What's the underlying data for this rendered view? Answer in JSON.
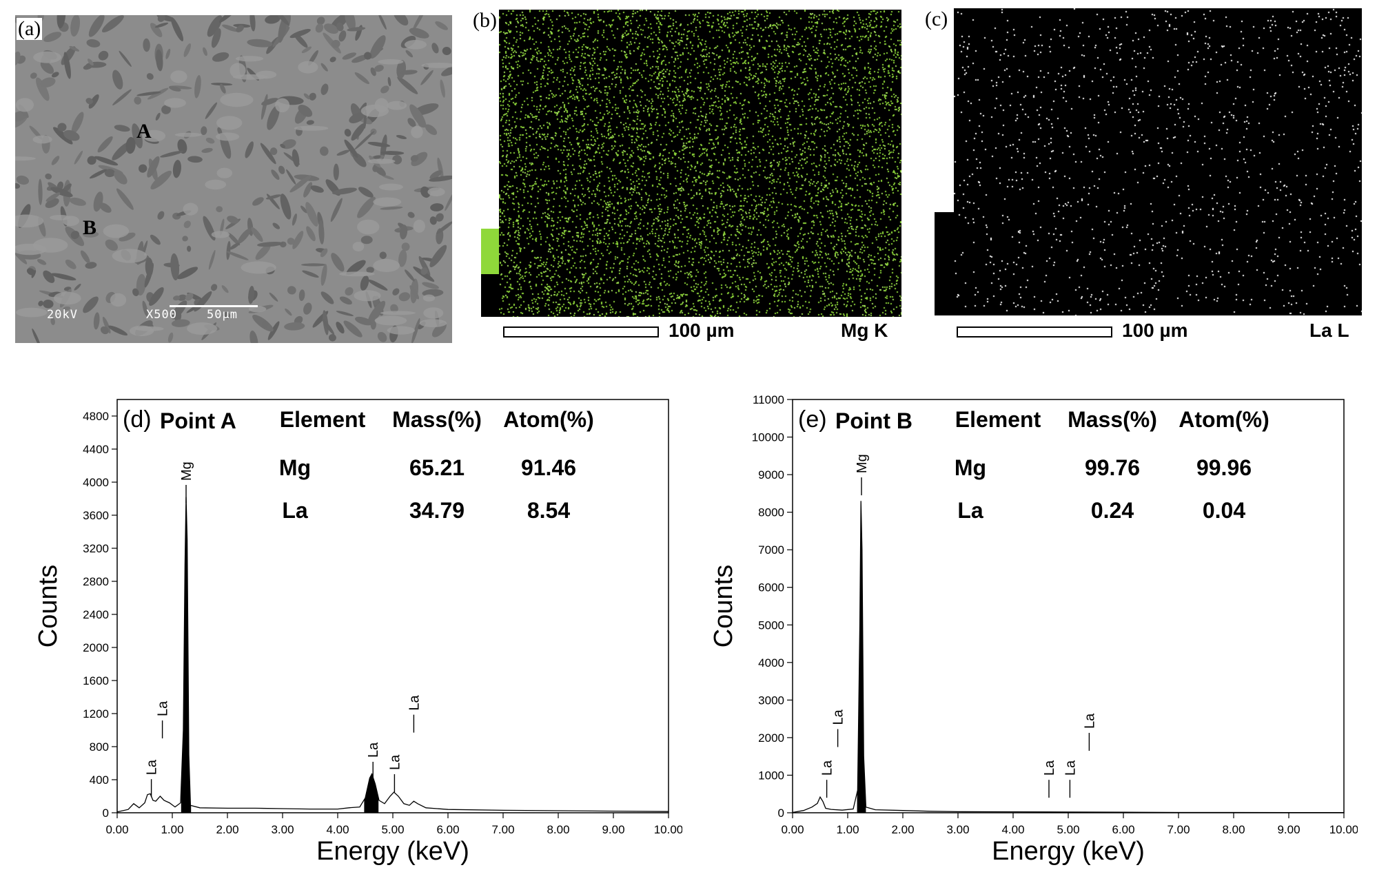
{
  "panels": {
    "a": {
      "label": "(a)",
      "point_a": "A",
      "point_b": "B",
      "voltage": "20kV",
      "magnification": "X500",
      "scale": "50µm"
    },
    "b": {
      "label": "(b)",
      "scale": "100 µm",
      "element": "Mg K",
      "map_color": "#8fd83a"
    },
    "c": {
      "label": "(c)",
      "scale": "100 µm",
      "element": "La L",
      "map_color": "#ffffff"
    },
    "d": {
      "label": "(d)",
      "point": "Point A",
      "table_headers": [
        "Element",
        "Mass(%)",
        "Atom(%)"
      ],
      "table_rows": [
        [
          "Mg",
          "65.21",
          "91.46"
        ],
        [
          "La",
          "34.79",
          "8.54"
        ]
      ]
    },
    "e": {
      "label": "(e)",
      "point": "Point B",
      "table_headers": [
        "Element",
        "Mass(%)",
        "Atom(%)"
      ],
      "table_rows": [
        [
          "Mg",
          "99.76",
          "99.96"
        ],
        [
          "La",
          "0.24",
          "0.04"
        ]
      ]
    }
  },
  "chart_data": [
    {
      "type": "line",
      "panel": "d",
      "xlabel": "Energy (keV)",
      "ylabel": "Counts",
      "xlim": [
        0,
        10
      ],
      "ylim": [
        0,
        5000
      ],
      "xticks": [
        "0.00",
        "1.00",
        "2.00",
        "3.00",
        "4.00",
        "5.00",
        "6.00",
        "7.00",
        "8.00",
        "9.00",
        "10.00"
      ],
      "yticks": [
        0,
        400,
        800,
        1200,
        1600,
        2000,
        2400,
        2800,
        3200,
        3600,
        4000,
        4400,
        4800
      ],
      "spectrum": [
        [
          0.0,
          10
        ],
        [
          0.2,
          40
        ],
        [
          0.3,
          110
        ],
        [
          0.4,
          60
        ],
        [
          0.5,
          120
        ],
        [
          0.55,
          220
        ],
        [
          0.6,
          230
        ],
        [
          0.65,
          150
        ],
        [
          0.7,
          140
        ],
        [
          0.78,
          200
        ],
        [
          0.85,
          150
        ],
        [
          0.95,
          120
        ],
        [
          1.05,
          70
        ],
        [
          1.15,
          120
        ],
        [
          1.2,
          1000
        ],
        [
          1.23,
          3000
        ],
        [
          1.25,
          3820
        ],
        [
          1.27,
          3300
        ],
        [
          1.3,
          700
        ],
        [
          1.33,
          90
        ],
        [
          1.5,
          60
        ],
        [
          2.0,
          55
        ],
        [
          2.5,
          55
        ],
        [
          3.0,
          50
        ],
        [
          3.5,
          45
        ],
        [
          4.0,
          45
        ],
        [
          4.2,
          60
        ],
        [
          4.4,
          70
        ],
        [
          4.5,
          180
        ],
        [
          4.58,
          420
        ],
        [
          4.62,
          470
        ],
        [
          4.68,
          350
        ],
        [
          4.75,
          150
        ],
        [
          4.85,
          110
        ],
        [
          4.95,
          200
        ],
        [
          5.02,
          250
        ],
        [
          5.1,
          200
        ],
        [
          5.2,
          110
        ],
        [
          5.3,
          90
        ],
        [
          5.38,
          140
        ],
        [
          5.45,
          110
        ],
        [
          5.6,
          60
        ],
        [
          6.0,
          40
        ],
        [
          7.0,
          30
        ],
        [
          8.0,
          25
        ],
        [
          9.0,
          20
        ],
        [
          10.0,
          15
        ]
      ],
      "filled_peaks": [
        [
          1.16,
          1.34
        ],
        [
          4.48,
          4.74
        ]
      ],
      "peak_markers": [
        {
          "label": "La",
          "x": 0.62,
          "y": 440
        },
        {
          "label": "La",
          "x": 0.82,
          "y": 1150
        },
        {
          "label": "Mg",
          "x": 1.25,
          "y": 4000
        },
        {
          "label": "La",
          "x": 4.64,
          "y": 650
        },
        {
          "label": "La",
          "x": 5.03,
          "y": 500
        },
        {
          "label": "La",
          "x": 5.38,
          "y": 1220
        }
      ]
    },
    {
      "type": "line",
      "panel": "e",
      "xlabel": "Energy (keV)",
      "ylabel": "Counts",
      "xlim": [
        0,
        10
      ],
      "ylim": [
        0,
        11000
      ],
      "xticks": [
        "0.00",
        "1.00",
        "2.00",
        "3.00",
        "4.00",
        "5.00",
        "6.00",
        "7.00",
        "8.00",
        "9.00",
        "10.00"
      ],
      "yticks": [
        0,
        1000,
        2000,
        3000,
        4000,
        5000,
        6000,
        7000,
        8000,
        9000,
        10000,
        11000
      ],
      "spectrum": [
        [
          0.0,
          10
        ],
        [
          0.2,
          60
        ],
        [
          0.35,
          150
        ],
        [
          0.45,
          250
        ],
        [
          0.5,
          420
        ],
        [
          0.55,
          300
        ],
        [
          0.6,
          120
        ],
        [
          0.7,
          90
        ],
        [
          0.9,
          70
        ],
        [
          1.1,
          100
        ],
        [
          1.18,
          600
        ],
        [
          1.22,
          5000
        ],
        [
          1.24,
          8300
        ],
        [
          1.26,
          7000
        ],
        [
          1.29,
          1500
        ],
        [
          1.33,
          150
        ],
        [
          1.5,
          80
        ],
        [
          2.0,
          60
        ],
        [
          2.5,
          40
        ],
        [
          3.0,
          30
        ],
        [
          4.0,
          25
        ],
        [
          5.0,
          20
        ],
        [
          6.0,
          15
        ],
        [
          7.0,
          10
        ],
        [
          8.0,
          10
        ],
        [
          9.0,
          8
        ],
        [
          10.0,
          8
        ]
      ],
      "filled_peaks": [
        [
          1.17,
          1.33
        ]
      ],
      "peak_markers": [
        {
          "label": "La",
          "x": 0.62,
          "y": 950
        },
        {
          "label": "La",
          "x": 0.82,
          "y": 2300
        },
        {
          "label": "Mg",
          "x": 1.25,
          "y": 9000
        },
        {
          "label": "La",
          "x": 4.65,
          "y": 950
        },
        {
          "label": "La",
          "x": 5.03,
          "y": 950
        },
        {
          "label": "La",
          "x": 5.38,
          "y": 2200
        }
      ]
    }
  ]
}
